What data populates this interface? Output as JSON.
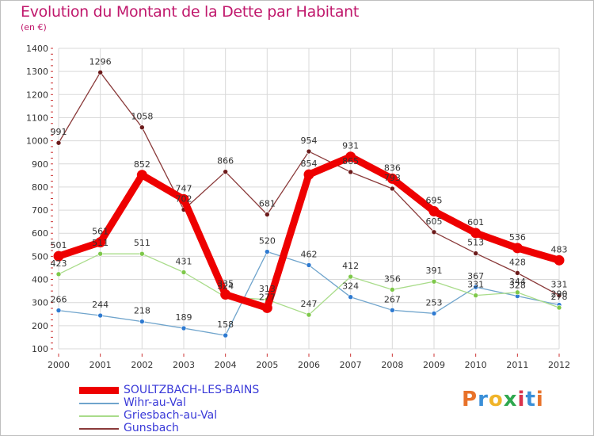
{
  "header": {
    "title": "Evolution du Montant de la Dette par Habitant",
    "subtitle": "(en €)"
  },
  "colors": {
    "title": "#c0186c",
    "grid": "#d9d9d9",
    "legend_text": "#3a3ad8"
  },
  "logo": {
    "letters": [
      "P",
      "r",
      "o",
      "x",
      "i",
      "t",
      "i"
    ],
    "colors": [
      "#e8722a",
      "#3a8fd8",
      "#f0b429",
      "#2fa84f",
      "#d9334c",
      "#3a8fd8",
      "#e8722a"
    ]
  },
  "chart_data": {
    "type": "line",
    "title": "Evolution du Montant de la Dette par Habitant",
    "ylabel": "(en €)",
    "xlabel": "",
    "ylim": [
      100,
      1400
    ],
    "yticks": [
      100,
      200,
      300,
      400,
      500,
      600,
      700,
      800,
      900,
      1000,
      1100,
      1200,
      1300,
      1400
    ],
    "grid": true,
    "legend_position": "bottom-left",
    "categories": [
      "2000",
      "2001",
      "2002",
      "2003",
      "2004",
      "2005",
      "2006",
      "2007",
      "2008",
      "2009",
      "2010",
      "2011",
      "2012"
    ],
    "series": [
      {
        "name": "SOULTZBACH-LES-BAINS",
        "color": "#ee0000",
        "marker": "#ee0000",
        "width": 9,
        "values": [
          501,
          561,
          852,
          747,
          335,
          277,
          854,
          931,
          836,
          695,
          601,
          536,
          483
        ],
        "labels": [
          "501",
          "561",
          "852",
          "747",
          "335",
          "277",
          "854",
          "931",
          "836",
          "695",
          "601",
          "536",
          "483"
        ]
      },
      {
        "name": "Wihr-au-Val",
        "color": "#6fa4cc",
        "marker": "#2e7ad1",
        "width": 1.3,
        "values": [
          266,
          244,
          218,
          189,
          158,
          520,
          462,
          324,
          267,
          253,
          367,
          328,
          290
        ],
        "labels": [
          "266",
          "244",
          "218",
          "189",
          "158",
          "520",
          "462",
          "324",
          "267",
          "253",
          "367",
          "328",
          "290"
        ]
      },
      {
        "name": "Griesbach-au-Val",
        "color": "#a9dc8a",
        "marker": "#7ec84a",
        "width": 1.3,
        "values": [
          423,
          511,
          511,
          431,
          324,
          313,
          247,
          412,
          356,
          391,
          331,
          344,
          278
        ],
        "labels": [
          "423",
          "511",
          "511",
          "431",
          "324",
          "313",
          "247",
          "412",
          "356",
          "391",
          "331",
          "344",
          "278"
        ]
      },
      {
        "name": "Gunsbach",
        "color": "#8a3a3a",
        "marker": "#6b1a1a",
        "width": 1.3,
        "values": [
          991,
          1296,
          1058,
          702,
          866,
          681,
          954,
          865,
          793,
          605,
          513,
          428,
          331
        ],
        "labels": [
          "991",
          "1296",
          "1058",
          "702",
          "866",
          "681",
          "954",
          "865",
          "793",
          "605",
          "513",
          "428",
          "331"
        ]
      }
    ]
  }
}
